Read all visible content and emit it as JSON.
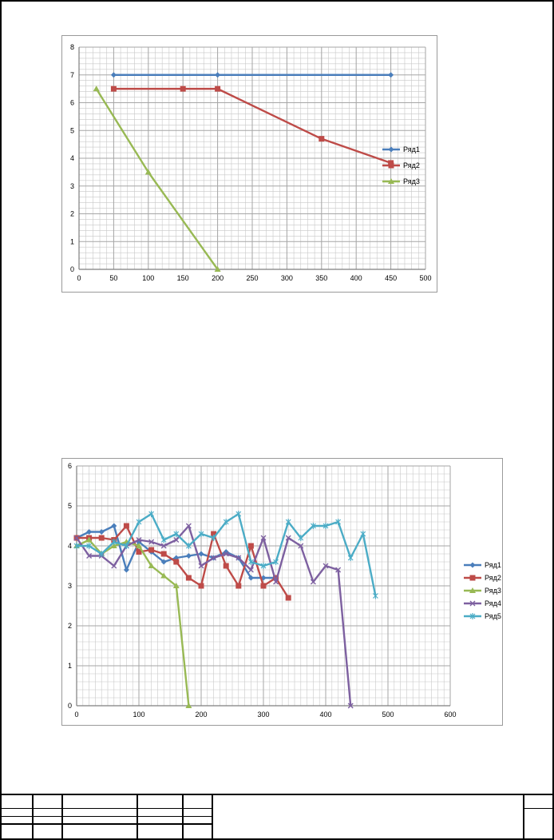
{
  "page": {
    "colors": {
      "frame": "#000000",
      "chart_border": "#9a9a9a",
      "grid": "#a6a6a6"
    }
  },
  "chart_data": [
    {
      "type": "line",
      "xlim": [
        0,
        500
      ],
      "ylim": [
        0,
        8
      ],
      "x_ticks": [
        0,
        50,
        100,
        150,
        200,
        250,
        300,
        350,
        400,
        450,
        500
      ],
      "y_ticks": [
        0,
        1,
        2,
        3,
        4,
        5,
        6,
        7,
        8
      ],
      "x_tick_labels": [
        "0",
        "50",
        "100",
        "150",
        "200",
        "250",
        "300",
        "350",
        "400",
        "450",
        "500"
      ],
      "y_tick_labels": [
        "0",
        "1",
        "2",
        "3",
        "4",
        "5",
        "6",
        "7",
        "8"
      ],
      "grid": true,
      "legend_position": "right",
      "series": [
        {
          "name": "Ряд1",
          "color": "#4a7ebb",
          "marker": "diamond",
          "x": [
            50,
            200,
            450
          ],
          "y": [
            7,
            7,
            7
          ]
        },
        {
          "name": "Ряд2",
          "color": "#be4b48",
          "marker": "square",
          "x": [
            50,
            150,
            200,
            350,
            450
          ],
          "y": [
            6.5,
            6.5,
            6.5,
            4.7,
            3.83
          ]
        },
        {
          "name": "Ряд3",
          "color": "#98b954",
          "marker": "triangle",
          "x": [
            25,
            100,
            200
          ],
          "y": [
            6.5,
            3.5,
            0
          ]
        }
      ]
    },
    {
      "type": "line",
      "xlim": [
        0,
        600
      ],
      "ylim": [
        0,
        6
      ],
      "x_ticks": [
        0,
        100,
        200,
        300,
        400,
        500,
        600
      ],
      "y_ticks": [
        0,
        1,
        2,
        3,
        4,
        5,
        6
      ],
      "x_tick_labels": [
        "0",
        "100",
        "200",
        "300",
        "400",
        "500",
        "600"
      ],
      "y_tick_labels": [
        "0",
        "1",
        "2",
        "3",
        "4",
        "5",
        "6"
      ],
      "grid": true,
      "legend_position": "right",
      "series": [
        {
          "name": "Ряд1",
          "color": "#4a7ebb",
          "marker": "diamond",
          "x": [
            0,
            20,
            40,
            60,
            80,
            100,
            120,
            140,
            160,
            180,
            200,
            220,
            240,
            260,
            280,
            300,
            320
          ],
          "y": [
            4.2,
            4.35,
            4.35,
            4.5,
            3.4,
            4.1,
            3.85,
            3.6,
            3.7,
            3.75,
            3.8,
            3.7,
            3.85,
            3.7,
            3.2,
            3.2,
            3.2
          ]
        },
        {
          "name": "Ряд2",
          "color": "#be4b48",
          "marker": "square",
          "x": [
            0,
            20,
            40,
            60,
            80,
            100,
            120,
            140,
            160,
            180,
            200,
            220,
            240,
            260,
            280,
            300,
            320,
            340
          ],
          "y": [
            4.2,
            4.2,
            4.2,
            4.15,
            4.5,
            3.85,
            3.9,
            3.8,
            3.6,
            3.2,
            3.0,
            4.3,
            3.5,
            3.0,
            4.0,
            3.0,
            3.2,
            2.7
          ]
        },
        {
          "name": "Ряд3",
          "color": "#98b954",
          "marker": "triangle",
          "x": [
            0,
            20,
            40,
            60,
            80,
            100,
            120,
            140,
            160,
            180
          ],
          "y": [
            4.0,
            4.15,
            3.8,
            4.0,
            4.1,
            4.0,
            3.5,
            3.25,
            3.0,
            0
          ]
        },
        {
          "name": "Ряд4",
          "color": "#7d60a0",
          "marker": "x",
          "x": [
            0,
            20,
            40,
            60,
            80,
            100,
            120,
            140,
            160,
            180,
            200,
            220,
            240,
            260,
            280,
            300,
            320,
            340,
            360,
            380,
            400,
            420,
            440
          ],
          "y": [
            4.2,
            3.75,
            3.75,
            3.5,
            4.0,
            4.15,
            4.1,
            4.0,
            4.15,
            4.5,
            3.5,
            3.7,
            3.8,
            3.7,
            3.4,
            4.2,
            3.1,
            4.2,
            4.0,
            3.1,
            3.5,
            3.4,
            0
          ]
        },
        {
          "name": "Ряд5",
          "color": "#4bacc6",
          "marker": "star",
          "x": [
            0,
            20,
            40,
            60,
            80,
            100,
            120,
            140,
            160,
            180,
            200,
            220,
            240,
            260,
            280,
            300,
            320,
            340,
            360,
            380,
            400,
            420,
            440,
            460,
            480
          ],
          "y": [
            4.0,
            4.0,
            3.8,
            4.1,
            4.0,
            4.6,
            4.8,
            4.15,
            4.3,
            4.0,
            4.3,
            4.2,
            4.6,
            4.8,
            3.6,
            3.5,
            3.6,
            4.6,
            4.2,
            4.5,
            4.5,
            4.6,
            3.7,
            4.3,
            2.75
          ]
        }
      ]
    }
  ]
}
